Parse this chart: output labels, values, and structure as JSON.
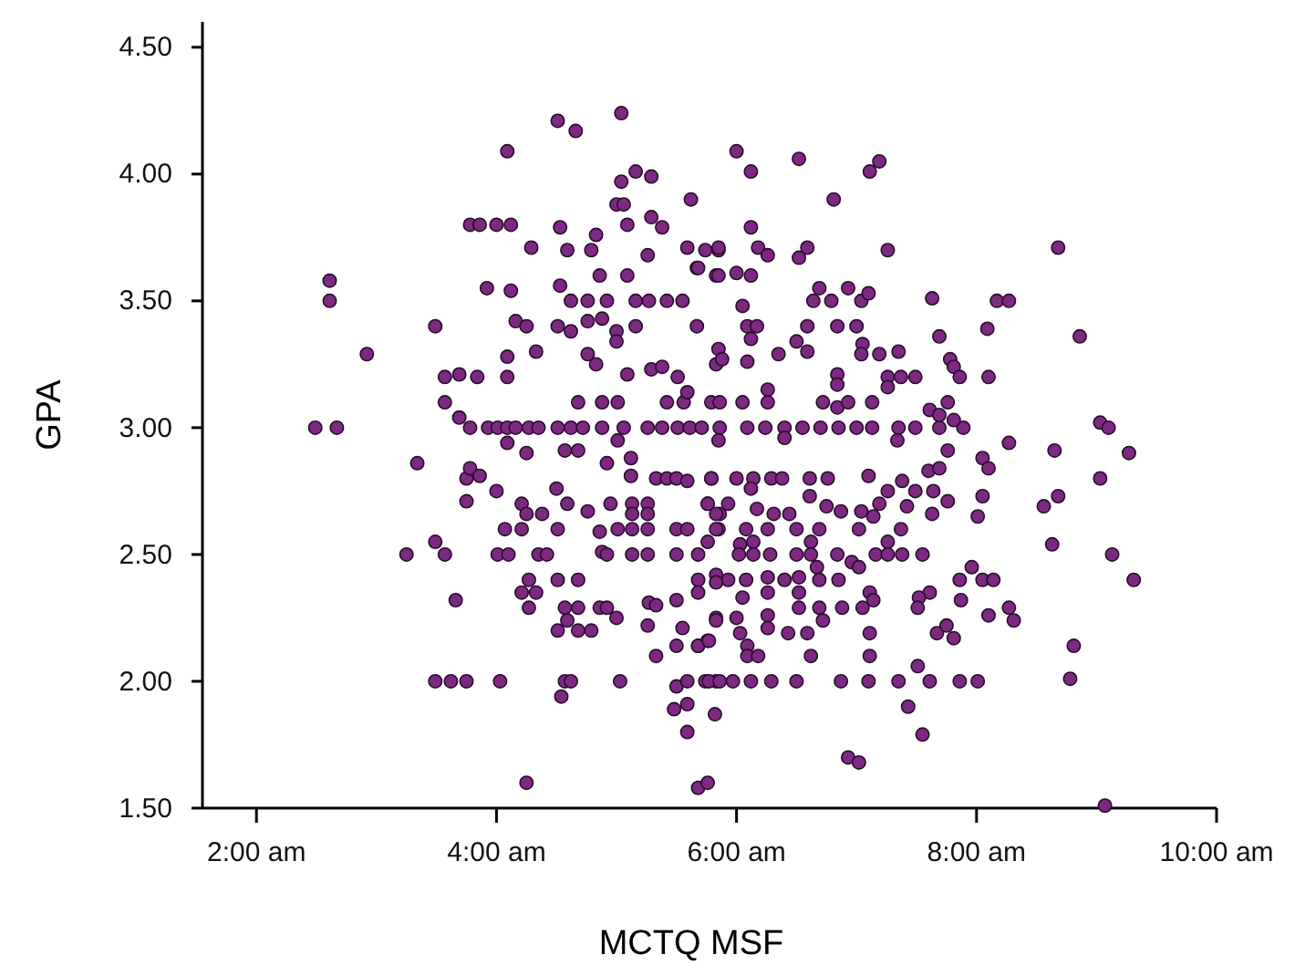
{
  "chart_data": {
    "type": "scatter",
    "xlabel": "MCTQ MSF",
    "ylabel": "GPA",
    "color": "#7b2a7f",
    "marker": "circle",
    "xlim": [
      1.55,
      10
    ],
    "ylim": [
      1.5,
      4.6
    ],
    "xticks": [
      {
        "value": 2,
        "label": "2:00 am"
      },
      {
        "value": 4,
        "label": "4:00 am"
      },
      {
        "value": 6,
        "label": "6:00 am"
      },
      {
        "value": 8,
        "label": "8:00 am"
      },
      {
        "value": 10,
        "label": "10:00 am"
      }
    ],
    "yticks": [
      {
        "value": 1.5,
        "label": "1.50"
      },
      {
        "value": 2,
        "label": "2.00"
      },
      {
        "value": 2.5,
        "label": "2.50"
      },
      {
        "value": 3,
        "label": "3.00"
      },
      {
        "value": 3.5,
        "label": "3.50"
      },
      {
        "value": 4,
        "label": "4.00"
      },
      {
        "value": 4.5,
        "label": "4.50"
      }
    ],
    "x": [
      2.49,
      2.67,
      3.34,
      3.25,
      3.49,
      3.57,
      3.66,
      3.49,
      3.62,
      3.75,
      4.03,
      4.25,
      4.54,
      5.68,
      5.76,
      2.61,
      2.61,
      2.92,
      3.49,
      4.09,
      4.51,
      4.66,
      5.04,
      3.78,
      3.86,
      4.0,
      4.12,
      3.57,
      3.69,
      3.84,
      3.57,
      3.69,
      4.29,
      4.53,
      4.83,
      5.16,
      5.29,
      5.04,
      5.62,
      3.92,
      4.12,
      4.16,
      4.25,
      4.09,
      4.09,
      4.33,
      4.51,
      4.62,
      4.76,
      4.88,
      5.0,
      5.16,
      5.0,
      4.76,
      4.83,
      5.09,
      5.29,
      5.38,
      4.68,
      4.88,
      5.01,
      5.42,
      5.56,
      5.51,
      5.59,
      5.83,
      4.62,
      4.76,
      4.92,
      5.16,
      5.27,
      5.42,
      5.55,
      5.26,
      5.67,
      5.59,
      5.74,
      5.85,
      5.83,
      4.53,
      5.09,
      5.0,
      5.06,
      5.38,
      5.29,
      5.09,
      4.86,
      4.79,
      4.59,
      3.78,
      3.93,
      4.01,
      4.09,
      4.16,
      4.27,
      4.35,
      4.51,
      4.62,
      4.72,
      4.88,
      5.06,
      5.26,
      5.38,
      5.51,
      5.61,
      5.71,
      5.86,
      6.09,
      6.24,
      6.4,
      6.55,
      6.7,
      6.85,
      7.0,
      7.13,
      7.35,
      7.49,
      7.69,
      6.0,
      6.12,
      6.52,
      7.11,
      7.19,
      6.81,
      6.12,
      5.85,
      6.18,
      6.26,
      6.59,
      6.52,
      7.26,
      8.68,
      5.68,
      5.85,
      6.0,
      6.12,
      6.69,
      6.93,
      6.64,
      6.79,
      7.04,
      7.1,
      7.63,
      8.17,
      8.27,
      6.05,
      5.67,
      6.09,
      6.17,
      6.59,
      6.84,
      7.0,
      6.12,
      7.69,
      8.09,
      8.86,
      6.5,
      6.59,
      7.05,
      7.04,
      7.19,
      7.35,
      5.85,
      5.88,
      6.35,
      7.78,
      7.81,
      7.86,
      8.1,
      6.09,
      7.26,
      7.37,
      7.49,
      6.84,
      6.84,
      7.26,
      6.26,
      5.79,
      5.86,
      6.05,
      6.26,
      6.72,
      6.84,
      6.93,
      7.13,
      7.61,
      7.69,
      7.76,
      7.89,
      7.81,
      9.03,
      9.1,
      8.27,
      8.65,
      9.27,
      7.34,
      5.85,
      6.4,
      8.05,
      8.1,
      7.6,
      7.69,
      7.76,
      5.79,
      6.0,
      6.14,
      6.29,
      6.38,
      6.61,
      6.76,
      7.1,
      7.38,
      7.26,
      6.12,
      7.49,
      7.64,
      7.76,
      8.05,
      8.01,
      8.56,
      8.68,
      9.03,
      5.76,
      5.86,
      5.93,
      6.17,
      6.31,
      6.44,
      6.61,
      6.75,
      6.87,
      7.04,
      7.14,
      7.19,
      7.42,
      7.63,
      5.85,
      6.08,
      6.26,
      6.5,
      6.69,
      7.02,
      7.37,
      5.76,
      6.03,
      6.14,
      6.62,
      7.26,
      8.63,
      5.68,
      6.02,
      6.14,
      6.28,
      6.5,
      6.62,
      6.84,
      7.16,
      7.26,
      7.38,
      7.55,
      9.13,
      6.67,
      6.96,
      7.02,
      7.96,
      5.83,
      5.68,
      5.93,
      6.08,
      6.26,
      6.4,
      6.52,
      6.69,
      6.85,
      7.86,
      8.05,
      8.14,
      9.31,
      6.05,
      6.26,
      6.52,
      7.11,
      7.14,
      7.61,
      7.52,
      7.87,
      6.52,
      6.69,
      6.88,
      7.05,
      7.51,
      8.27,
      5.83,
      6.0,
      6.26,
      6.72,
      8.1,
      8.31,
      6.26,
      6.03,
      6.43,
      6.59,
      7.11,
      7.67,
      7.75,
      7.81,
      8.81,
      5.68,
      5.76,
      6.09,
      6.09,
      6.18,
      6.62,
      7.11,
      7.51,
      8.78,
      5.74,
      5.83,
      5.97,
      6.12,
      6.29,
      6.5,
      6.87,
      7.1,
      7.35,
      7.61,
      7.86,
      8.01,
      5.82,
      7.43,
      7.55,
      6.93,
      7.02,
      9.07,
      4.09,
      4.25,
      4.57,
      4.68,
      4.92,
      5.01,
      5.12,
      5.12,
      5.33,
      5.42,
      5.5,
      5.59,
      5.79,
      3.75,
      3.78,
      3.86,
      4.0,
      3.75,
      4.21,
      4.25,
      4.38,
      4.5,
      4.59,
      4.76,
      4.95,
      5.13,
      5.26,
      5.13,
      5.26,
      5.76,
      5.83,
      4.07,
      4.21,
      4.51,
      4.86,
      5.01,
      5.13,
      5.26,
      5.5,
      5.59,
      5.83,
      4.01,
      4.1,
      4.35,
      4.42,
      4.88,
      4.92,
      5.13,
      5.26,
      5.5,
      4.27,
      4.51,
      4.68,
      4.21,
      4.33,
      4.27,
      4.57,
      4.68,
      4.86,
      4.92,
      5.0,
      4.59,
      5.27,
      5.33,
      5.5,
      5.68,
      5.83,
      5.83,
      4.51,
      4.68,
      4.79,
      5.26,
      5.55,
      5.33,
      5.5,
      5.68,
      5.77,
      4.57,
      4.62,
      5.03,
      5.5,
      5.59,
      5.77,
      5.86,
      5.48,
      5.59,
      5.59
    ],
    "values": [
      3.0,
      3.0,
      2.86,
      2.5,
      2.55,
      2.5,
      2.32,
      2.0,
      2.0,
      2.0,
      2.0,
      1.6,
      1.94,
      1.58,
      1.6,
      3.58,
      3.5,
      3.29,
      3.4,
      4.09,
      4.21,
      4.17,
      4.24,
      3.8,
      3.8,
      3.8,
      3.8,
      3.2,
      3.21,
      3.2,
      3.1,
      3.04,
      3.71,
      3.79,
      3.76,
      4.01,
      3.99,
      3.97,
      3.9,
      3.55,
      3.54,
      3.42,
      3.4,
      3.28,
      3.2,
      3.3,
      3.4,
      3.38,
      3.42,
      3.43,
      3.38,
      3.4,
      3.34,
      3.29,
      3.25,
      3.21,
      3.23,
      3.24,
      3.1,
      3.1,
      3.1,
      3.1,
      3.1,
      3.2,
      3.14,
      3.25,
      3.5,
      3.5,
      3.5,
      3.5,
      3.5,
      3.5,
      3.5,
      3.68,
      3.63,
      3.71,
      3.7,
      3.7,
      3.6,
      3.56,
      3.8,
      3.88,
      3.88,
      3.79,
      3.83,
      3.6,
      3.6,
      3.7,
      3.7,
      3.0,
      3.0,
      3.0,
      3.0,
      3.0,
      3.0,
      3.0,
      3.0,
      3.0,
      3.0,
      3.0,
      3.0,
      3.0,
      3.0,
      3.0,
      3.0,
      3.0,
      3.0,
      3.0,
      3.0,
      3.0,
      3.0,
      3.0,
      3.0,
      3.0,
      3.0,
      3.0,
      3.0,
      3.0,
      4.09,
      4.01,
      4.06,
      4.01,
      4.05,
      3.9,
      3.79,
      3.71,
      3.71,
      3.68,
      3.71,
      3.67,
      3.7,
      3.71,
      3.63,
      3.6,
      3.61,
      3.6,
      3.55,
      3.55,
      3.5,
      3.5,
      3.5,
      3.53,
      3.51,
      3.5,
      3.5,
      3.48,
      3.4,
      3.4,
      3.4,
      3.4,
      3.4,
      3.4,
      3.35,
      3.36,
      3.39,
      3.36,
      3.34,
      3.3,
      3.33,
      3.29,
      3.29,
      3.3,
      3.31,
      3.27,
      3.29,
      3.27,
      3.24,
      3.2,
      3.2,
      3.26,
      3.2,
      3.2,
      3.2,
      3.21,
      3.17,
      3.16,
      3.15,
      3.1,
      3.1,
      3.1,
      3.1,
      3.1,
      3.08,
      3.1,
      3.1,
      3.07,
      3.05,
      3.1,
      3.0,
      3.03,
      3.02,
      3.0,
      2.94,
      2.91,
      2.9,
      2.95,
      2.95,
      2.96,
      2.88,
      2.84,
      2.83,
      2.84,
      2.91,
      2.8,
      2.8,
      2.8,
      2.8,
      2.8,
      2.8,
      2.8,
      2.81,
      2.79,
      2.75,
      2.76,
      2.75,
      2.75,
      2.71,
      2.73,
      2.65,
      2.69,
      2.73,
      2.8,
      2.7,
      2.66,
      2.7,
      2.68,
      2.66,
      2.66,
      2.73,
      2.69,
      2.67,
      2.67,
      2.65,
      2.7,
      2.69,
      2.66,
      2.6,
      2.6,
      2.6,
      2.6,
      2.6,
      2.6,
      2.6,
      2.55,
      2.54,
      2.55,
      2.55,
      2.55,
      2.54,
      2.5,
      2.5,
      2.5,
      2.5,
      2.5,
      2.5,
      2.5,
      2.5,
      2.5,
      2.5,
      2.5,
      2.5,
      2.45,
      2.47,
      2.45,
      2.45,
      2.42,
      2.4,
      2.4,
      2.4,
      2.41,
      2.4,
      2.41,
      2.4,
      2.4,
      2.4,
      2.4,
      2.4,
      2.4,
      2.33,
      2.35,
      2.35,
      2.35,
      2.32,
      2.35,
      2.33,
      2.32,
      2.29,
      2.29,
      2.29,
      2.29,
      2.29,
      2.29,
      2.25,
      2.25,
      2.26,
      2.24,
      2.26,
      2.24,
      2.21,
      2.19,
      2.19,
      2.19,
      2.19,
      2.19,
      2.22,
      2.17,
      2.14,
      2.14,
      2.16,
      2.14,
      2.1,
      2.1,
      2.1,
      2.1,
      2.06,
      2.01,
      2.0,
      2.0,
      2.0,
      2.0,
      2.0,
      2.0,
      2.0,
      2.0,
      2.0,
      2.0,
      2.0,
      2.0,
      1.87,
      1.9,
      1.79,
      1.7,
      1.68,
      1.51,
      2.94,
      2.9,
      2.91,
      2.91,
      2.86,
      2.95,
      2.88,
      2.81,
      2.8,
      2.8,
      2.8,
      2.79,
      2.8,
      2.8,
      2.84,
      2.81,
      2.75,
      2.71,
      2.7,
      2.66,
      2.66,
      2.76,
      2.7,
      2.67,
      2.7,
      2.7,
      2.7,
      2.66,
      2.66,
      2.7,
      2.66,
      2.6,
      2.6,
      2.6,
      2.59,
      2.6,
      2.6,
      2.6,
      2.6,
      2.6,
      2.6,
      2.5,
      2.5,
      2.5,
      2.5,
      2.51,
      2.5,
      2.5,
      2.5,
      2.5,
      2.4,
      2.4,
      2.4,
      2.35,
      2.35,
      2.29,
      2.29,
      2.29,
      2.29,
      2.29,
      2.25,
      2.24,
      2.31,
      2.3,
      2.32,
      2.35,
      2.39,
      2.24,
      2.2,
      2.2,
      2.2,
      2.22,
      2.21,
      2.1,
      2.14,
      2.14,
      2.16,
      2.0,
      2.0,
      2.0,
      1.98,
      2.0,
      2.0,
      2.0,
      1.89,
      1.91,
      1.8
    ]
  }
}
